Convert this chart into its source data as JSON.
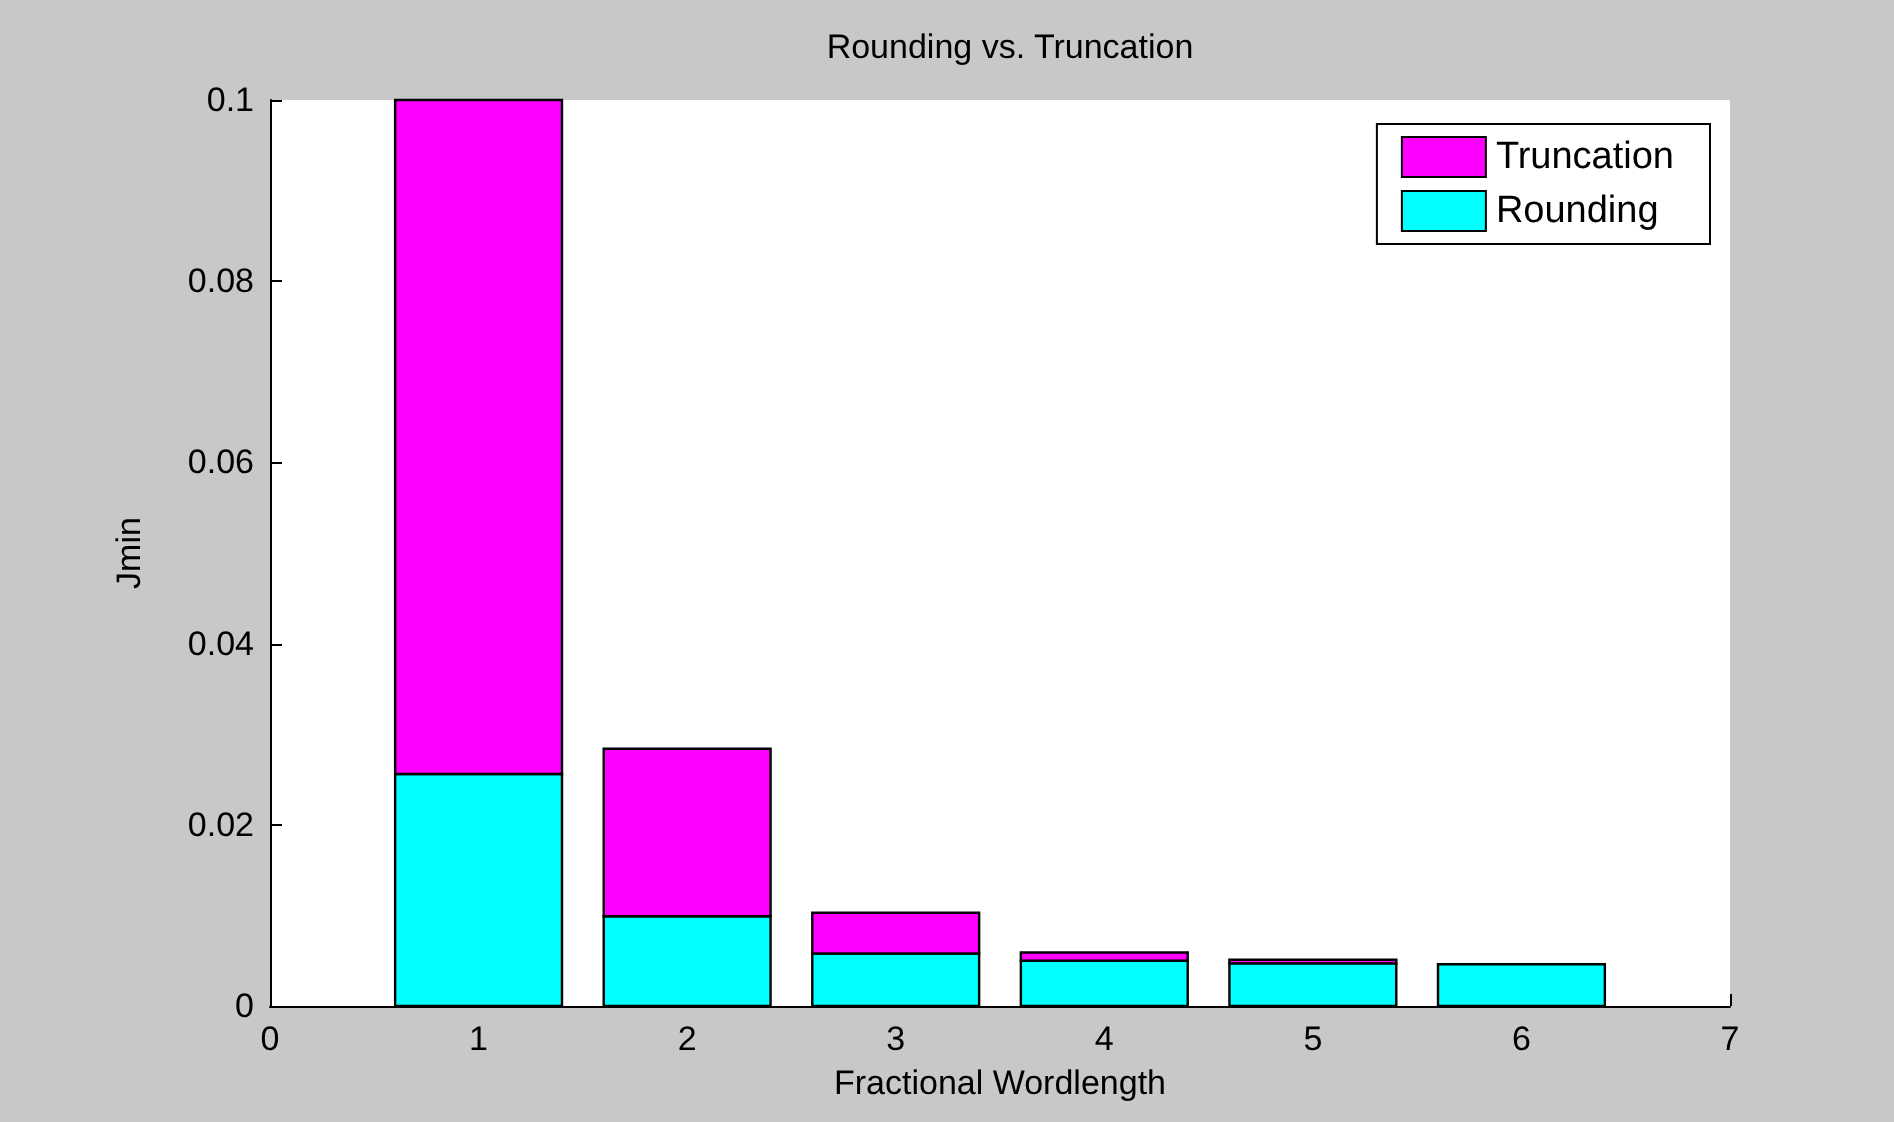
{
  "chart_data": {
    "type": "bar",
    "title": "Rounding vs. Truncation",
    "xlabel": "Fractional Wordlength",
    "ylabel": "Jmin",
    "x": [
      1,
      2,
      3,
      4,
      5,
      6
    ],
    "stacked": true,
    "series": [
      {
        "name": "Rounding",
        "color": "#00ffff",
        "values": [
          0.0256,
          0.0099,
          0.0058,
          0.005,
          0.0047,
          0.0046
        ]
      },
      {
        "name": "Truncation",
        "color": "#ff00ff",
        "values": [
          0.0744,
          0.0185,
          0.0045,
          0.0009,
          0.0004,
          0
        ]
      }
    ],
    "xlim": [
      0,
      7
    ],
    "xticks": [
      0,
      1,
      2,
      3,
      4,
      5,
      6,
      7
    ],
    "ylim": [
      0,
      0.1
    ],
    "yticks": [
      0,
      0.02,
      0.04,
      0.06,
      0.08,
      0.1
    ],
    "grid": false,
    "legend": "top right"
  }
}
